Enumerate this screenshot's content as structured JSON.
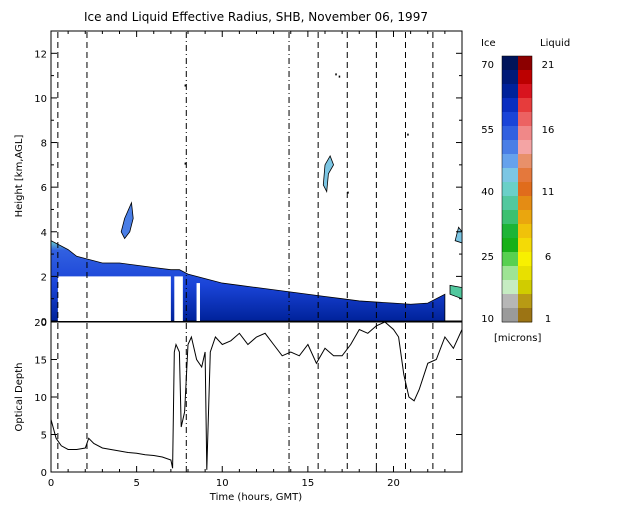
{
  "chart_data": [
    {
      "type": "heatmap",
      "title": "Ice and Liquid Effective Radius, SHB, November 06, 1997",
      "ylabel": "Height [km,AGL]",
      "xlim": [
        0,
        24
      ],
      "ylim": [
        0,
        13
      ],
      "y_ticks": [
        0,
        2,
        4,
        6,
        8,
        10,
        12
      ],
      "event_lines_hours": [
        {
          "x": 0.4,
          "style": "dashed"
        },
        {
          "x": 2.1,
          "style": "dashed"
        },
        {
          "x": 7.9,
          "style": "dash-dot"
        },
        {
          "x": 13.9,
          "style": "dash-dot"
        },
        {
          "x": 15.6,
          "style": "dashed"
        },
        {
          "x": 17.3,
          "style": "dashed"
        },
        {
          "x": 19.0,
          "style": "dashed"
        },
        {
          "x": 20.7,
          "style": "dashed"
        },
        {
          "x": 22.3,
          "style": "dashed"
        }
      ],
      "cloud_top_km": {
        "x": [
          0,
          0.5,
          1,
          1.5,
          2,
          3,
          4,
          5,
          6,
          7,
          7.5,
          8,
          9,
          10,
          11,
          12,
          13,
          14,
          15,
          16,
          17,
          18,
          19,
          20,
          21,
          22,
          23
        ],
        "y": [
          3.6,
          3.4,
          3.2,
          2.9,
          2.8,
          2.6,
          2.6,
          2.5,
          2.4,
          2.3,
          2.3,
          2.1,
          1.9,
          1.7,
          1.6,
          1.5,
          1.4,
          1.3,
          1.2,
          1.1,
          1.0,
          0.9,
          0.85,
          0.8,
          0.75,
          0.8,
          1.2
        ]
      },
      "colorbar": {
        "left_header": "Ice",
        "right_header": "Liquid",
        "left_ticks": [
          "70",
          "55",
          "40",
          "25",
          "10"
        ],
        "right_ticks": [
          "21",
          "16",
          "11",
          "6",
          "1"
        ],
        "units": "[microns]",
        "ice_colors": [
          "#00145a",
          "#001a78",
          "#00229a",
          "#0a2ec0",
          "#1a44d8",
          "#3160e0",
          "#4a7ee6",
          "#66a2ec",
          "#7cc6e4",
          "#6ad0c8",
          "#52c89e",
          "#3cc070",
          "#1eb436",
          "#18b018",
          "#58d050",
          "#9ee494",
          "#c6ecc2",
          "#b6b6b6",
          "#9a9a9a"
        ],
        "liquid_colors": [
          "#8c0000",
          "#bc0000",
          "#d8141e",
          "#e63c3c",
          "#ec6262",
          "#f08888",
          "#f4a4a4",
          "#e8906a",
          "#e4783c",
          "#e06c1c",
          "#e48c14",
          "#eaa60e",
          "#f0c20a",
          "#f4da06",
          "#f8f000",
          "#e8e000",
          "#d0cc00",
          "#b89a14",
          "#9c7414"
        ]
      }
    },
    {
      "type": "line",
      "ylabel": "Optical Depth",
      "xlabel": "Time (hours, GMT)",
      "xlim": [
        0,
        24
      ],
      "ylim": [
        0,
        20
      ],
      "x_ticks": [
        0,
        5,
        10,
        15,
        20
      ],
      "y_ticks": [
        0,
        5,
        10,
        15,
        20
      ],
      "series": [
        {
          "x": [
            0,
            0.3,
            0.6,
            1,
            1.5,
            2,
            2.2,
            2.5,
            3,
            3.5,
            4,
            4.5,
            5,
            5.5,
            6,
            6.5,
            7,
            7.1,
            7.2,
            7.3,
            7.5,
            7.6,
            7.8,
            8,
            8.2,
            8.5,
            8.8,
            9,
            9.1,
            9.3,
            9.6,
            10,
            10.5,
            11,
            11.5,
            12,
            12.5,
            13,
            13.5,
            14,
            14.5,
            15,
            15.5,
            16,
            16.5,
            17,
            17.5,
            18,
            18.5,
            19,
            19.5,
            20,
            20.3,
            20.6,
            20.9,
            21.2,
            21.5,
            22,
            22.5,
            23,
            23.5,
            24
          ],
          "y": [
            7,
            4.5,
            3.5,
            3,
            3,
            3.2,
            4.5,
            3.8,
            3.2,
            3,
            2.8,
            2.6,
            2.5,
            2.3,
            2.2,
            2,
            1.6,
            0.5,
            16,
            17,
            16,
            6,
            8,
            17,
            18,
            15,
            14,
            16,
            0.3,
            16,
            18,
            17,
            17.5,
            18.5,
            17,
            18,
            18.5,
            17,
            15.5,
            16,
            15.5,
            17,
            14.5,
            16.5,
            15.5,
            15.5,
            17,
            19,
            18.5,
            19.5,
            20,
            19,
            18,
            13,
            10,
            9.5,
            11,
            14.5,
            15,
            18,
            16.5,
            19
          ]
        }
      ]
    }
  ]
}
